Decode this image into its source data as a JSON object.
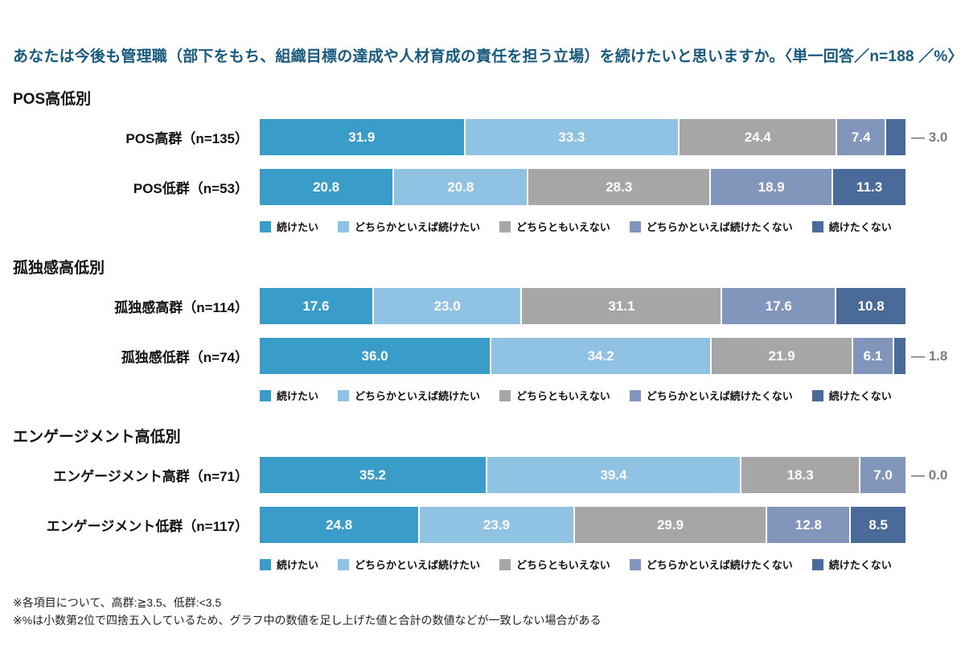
{
  "title": "あなたは今後も管理職（部下をもち、組織目標の達成や人材育成の責任を担う立場）を続けたいと思いますか。〈単一回答／n=188 ／%〉",
  "colors": {
    "title_text": "#175A7D",
    "callout_text": "#7D7D7D",
    "bar_value_text": "#FFFFFF",
    "series": [
      "#3A9CC9",
      "#8FC2E3",
      "#A6A6A6",
      "#8296BB",
      "#4A6B99"
    ]
  },
  "chart_data": {
    "type": "bar",
    "stacked": true,
    "orientation": "horizontal",
    "value_unit": "%",
    "xlim": [
      0,
      100
    ],
    "n_total": 188,
    "series": [
      "続けたい",
      "どちらかといえば続けたい",
      "どちらともいえない",
      "どちらかといえば続けたくない",
      "続けたくない"
    ],
    "legend_position": "below-each-section",
    "sections": [
      {
        "header": "POS高低別",
        "rows": [
          {
            "label": "POS高群（n=135）",
            "values": [
              31.9,
              33.3,
              24.4,
              7.4,
              3.0
            ],
            "callout": true
          },
          {
            "label": "POS低群（n=53）",
            "values": [
              20.8,
              20.8,
              28.3,
              18.9,
              11.3
            ],
            "callout": false
          }
        ]
      },
      {
        "header": "孤独感高低別",
        "rows": [
          {
            "label": "孤独感高群（n=114）",
            "values": [
              17.6,
              23.0,
              31.1,
              17.6,
              10.8
            ],
            "callout": false
          },
          {
            "label": "孤独感低群（n=74）",
            "values": [
              36.0,
              34.2,
              21.9,
              6.1,
              1.8
            ],
            "callout": true
          }
        ]
      },
      {
        "header": "エンゲージメント高低別",
        "rows": [
          {
            "label": "エンゲージメント高群（n=71）",
            "values": [
              35.2,
              39.4,
              18.3,
              7.0,
              0.0
            ],
            "callout": true
          },
          {
            "label": "エンゲージメント低群（n=117）",
            "values": [
              24.8,
              23.9,
              29.9,
              12.8,
              8.5
            ],
            "callout": false
          }
        ]
      }
    ]
  },
  "footnotes": [
    "※各項目について、高群:≧3.5、低群:<3.5",
    "※%は小数第2位で四捨五入しているため、グラフ中の数値を足し上げた値と合計の数値などが一致しない場合がある"
  ]
}
